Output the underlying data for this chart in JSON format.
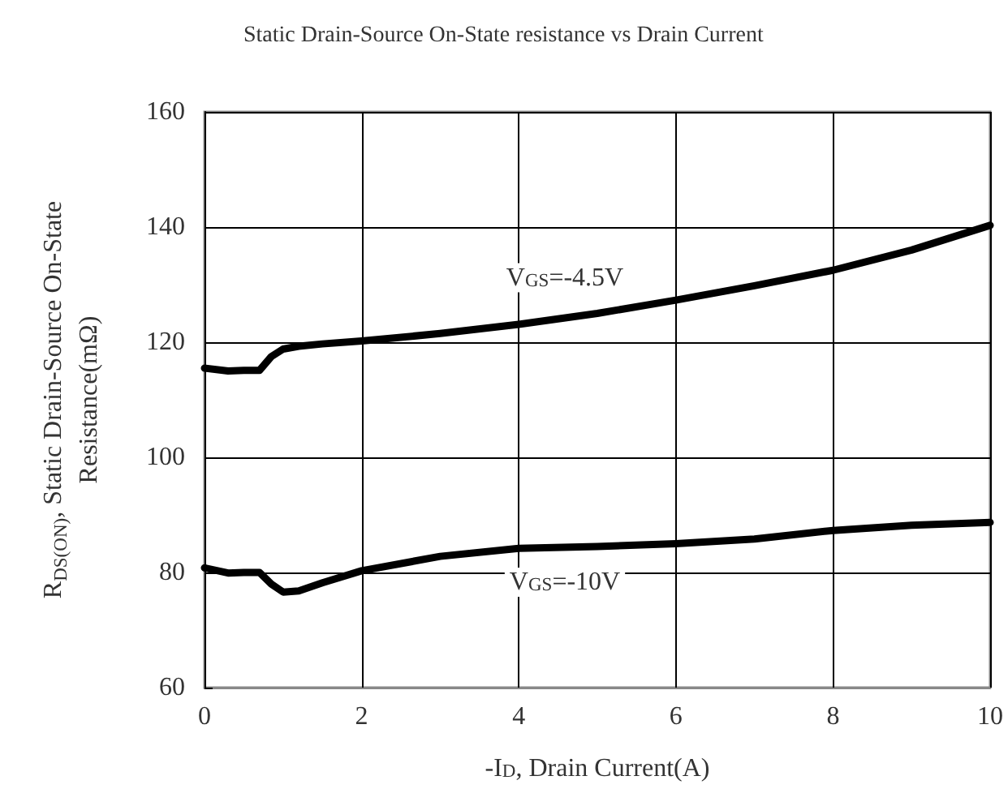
{
  "chart_data": {
    "type": "line",
    "title": "Static Drain-Source On-State resistance vs Drain Current",
    "xlabel": "-I$_{D}$, Drain Current(A)",
    "ylabel": "R$_{DS(ON)}$, Static Drain-Source On-State\nResistance(mΩ)",
    "series": [
      {
        "name": "V$_{GS}$=-4.5V",
        "color": "#000000",
        "x": [
          0,
          0.3,
          0.5,
          0.7,
          0.85,
          1,
          1.2,
          1.5,
          2,
          3,
          4,
          5,
          6,
          7,
          8,
          9,
          10
        ],
        "values": [
          115.5,
          115,
          115.1,
          115.1,
          117.5,
          118.8,
          119.3,
          119.7,
          120.2,
          121.5,
          123.1,
          125,
          127.3,
          129.8,
          132.5,
          136,
          140.3
        ]
      },
      {
        "name": "V$_{GS}$=-10V",
        "color": "#000000",
        "x": [
          0,
          0.3,
          0.5,
          0.7,
          0.85,
          1,
          1.2,
          1.5,
          2,
          3,
          4,
          5,
          6,
          7,
          8,
          9,
          10
        ],
        "values": [
          80.8,
          79.9,
          80,
          80,
          78,
          76.6,
          76.8,
          78.2,
          80.3,
          82.8,
          84.2,
          84.5,
          85,
          85.8,
          87.3,
          88.2,
          88.7
        ]
      }
    ],
    "xlim": [
      0,
      10
    ],
    "xticks": [
      0,
      2,
      4,
      6,
      8,
      10
    ],
    "ylim": [
      60,
      160
    ],
    "yticks": [
      60,
      80,
      100,
      120,
      140,
      160
    ],
    "grid": true,
    "marker": "none",
    "line_style": "solid"
  }
}
